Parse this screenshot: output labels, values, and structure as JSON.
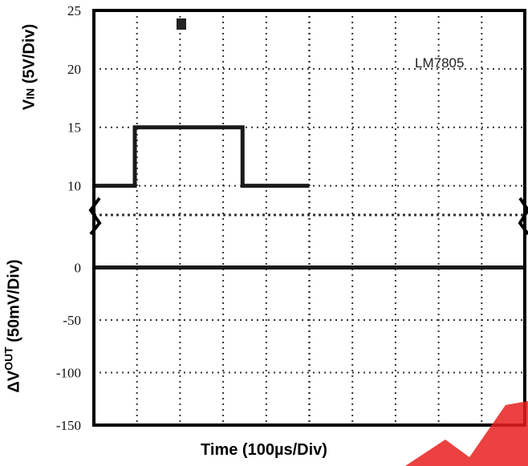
{
  "chart_data": {
    "type": "line",
    "instrument_label": "LM7805",
    "xlabel": "Time (100µs/Div)",
    "x_unit": "µs",
    "x_divisions": 10,
    "x_range": [
      0,
      1000
    ],
    "grid": true,
    "panels": [
      {
        "name": "vin",
        "ylabel_main": "V",
        "ylabel_sub": "IN",
        "ylabel_rest": " (5V/Div)",
        "ylim": [
          7.5,
          25
        ],
        "yticks": [
          "25",
          "20",
          "15",
          "10"
        ],
        "ytick_values": [
          25,
          20,
          15,
          10
        ],
        "series": [
          {
            "x": [
              0,
              95,
              95,
              345,
              345,
              500
            ],
            "y": [
              10,
              10,
              15,
              15,
              10,
              10
            ]
          }
        ]
      },
      {
        "name": "dvout",
        "ylabel_main": "ΔV",
        "ylabel_sup": "OUT",
        "ylabel_rest": " (50mV/Div)",
        "ylim": [
          -150,
          50
        ],
        "yticks": [
          "0",
          "-50",
          "-100",
          "-150"
        ],
        "ytick_values": [
          0,
          -50,
          -100,
          -150
        ],
        "series": [
          {
            "x": [
              0,
              1000
            ],
            "y": [
              0,
              0
            ]
          }
        ]
      }
    ]
  },
  "colors": {
    "trace": "#1a1a1a",
    "grid": "#333333",
    "frame": "#000000",
    "watermark": "#e8201e"
  }
}
